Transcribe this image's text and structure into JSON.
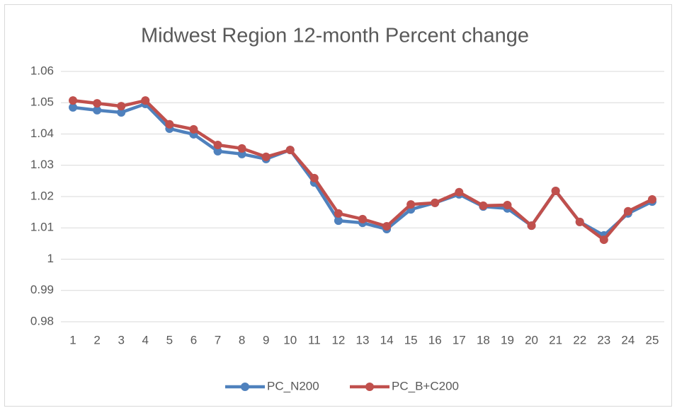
{
  "chart_data": {
    "type": "line",
    "title": "Midwest Region 12-month Percent change",
    "categories": [
      "1",
      "2",
      "3",
      "4",
      "5",
      "6",
      "7",
      "8",
      "9",
      "10",
      "11",
      "12",
      "13",
      "14",
      "15",
      "16",
      "17",
      "18",
      "19",
      "20",
      "21",
      "22",
      "23",
      "24",
      "25"
    ],
    "series": [
      {
        "name": "PC_N200",
        "color": "#4f81bd",
        "values": [
          1.0485,
          1.0476,
          1.0469,
          1.0496,
          1.0417,
          1.0399,
          1.0345,
          1.0336,
          1.032,
          1.0349,
          1.0245,
          1.0123,
          1.0116,
          1.0096,
          1.0159,
          1.018,
          1.0207,
          1.0168,
          1.0162,
          1.0107,
          1.0218,
          1.0119,
          1.0076,
          1.0146,
          1.0184
        ]
      },
      {
        "name": "PC_B+C200",
        "color": "#c0504d",
        "values": [
          1.0507,
          1.0498,
          1.0489,
          1.0507,
          1.0431,
          1.0415,
          1.0365,
          1.0354,
          1.0327,
          1.0349,
          1.0259,
          1.0146,
          1.0128,
          1.0105,
          1.0175,
          1.018,
          1.0214,
          1.0171,
          1.0173,
          1.0107,
          1.0218,
          1.0119,
          1.0062,
          1.0153,
          1.0191
        ]
      }
    ],
    "ylim": [
      0.98,
      1.06
    ],
    "yticks": [
      0.98,
      0.99,
      1,
      1.01,
      1.02,
      1.03,
      1.04,
      1.05,
      1.06
    ],
    "grid": true,
    "legend": "bottom"
  }
}
